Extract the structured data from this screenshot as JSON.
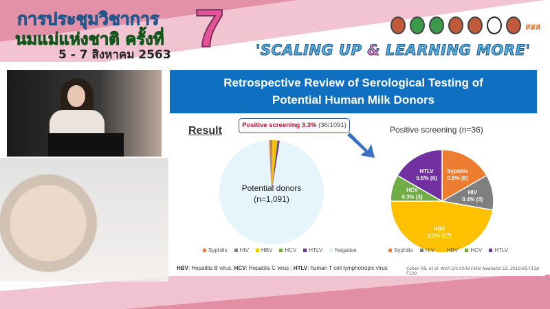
{
  "header": {
    "title_line1": "การประชุมวิชาการ",
    "title_line2": "นมแม่แห่งชาติ ครั้งที่",
    "date": "5 - 7 สิงหาคม 2563",
    "edition": "7",
    "slogan_pre": "'SCALING UP ",
    "slogan_amp": "&",
    "slogan_post": " LEARNING MORE'",
    "logos": [
      "logo-1",
      "logo-2",
      "logo-3",
      "logo-4",
      "logo-5",
      "logo-6",
      "logo-7"
    ],
    "thaihealth_logo": "สสส"
  },
  "slide": {
    "title_line1": "Retrospective Review of Serological Testing of",
    "title_line2": "Potential Human Milk Donors",
    "result_heading": "Result",
    "callout_bold": "Positive screening 3.3%",
    "callout_count": " (36/1091)",
    "right_title": "Positive screening (n=36)",
    "footnote": [
      {
        "abbr": "HBV",
        "text": ": Hepatitis B virus; "
      },
      {
        "abbr": "HCV",
        "text": ": Hepatitis C virus ; "
      },
      {
        "abbr": "HTLV",
        "text": ": human T cell lymphotropic virus"
      }
    ],
    "citation": "Cohen RS, et al. Arch Dis Child Fetal Neonatal Ed. 2010;95:F118-F120."
  },
  "chart_data": [
    {
      "type": "pie",
      "center_label_line1": "Potential donors",
      "center_label_line2": "(n=1,091)",
      "categories": [
        "Syphilis",
        "HIV",
        "HBV",
        "HCV",
        "HTLV",
        "Negative"
      ],
      "values": [
        6,
        4,
        17,
        3,
        6,
        1055
      ],
      "colors": [
        "#ed7d31",
        "#7f7f7f",
        "#ffc000",
        "#70ad47",
        "#7030a0",
        "#e6f4fb"
      ],
      "legend": "bottom"
    },
    {
      "type": "pie",
      "title": "Positive screening (n=36)",
      "categories": [
        "Syphilis",
        "HIV",
        "HBV",
        "HCV",
        "HTLV"
      ],
      "values": [
        6,
        4,
        17,
        3,
        6
      ],
      "labels": [
        "0.5% (6)",
        "0.4% (4)",
        "1.6% (17)",
        "0.3% (3)",
        "0.5% (6)"
      ],
      "colors": [
        "#ed7d31",
        "#7f7f7f",
        "#ffc000",
        "#70ad47",
        "#7030a0"
      ],
      "legend": "bottom"
    }
  ]
}
